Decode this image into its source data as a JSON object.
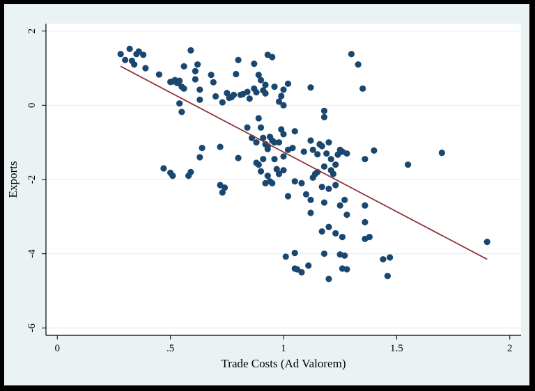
{
  "chart_data": {
    "type": "scatter",
    "title": "",
    "xlabel": "Trade Costs (Ad Valorem)",
    "ylabel": "Exports",
    "xlim": [
      -0.05,
      2.05
    ],
    "ylim": [
      -6.2,
      2.2
    ],
    "xticks": [
      0,
      0.5,
      1,
      1.5,
      2
    ],
    "xtick_labels": [
      "0",
      ".5",
      "1",
      "1.5",
      "2"
    ],
    "yticks": [
      2,
      0,
      -2,
      -4,
      -6
    ],
    "ytick_labels": [
      "2",
      "0",
      "-2",
      "-4",
      "-6"
    ],
    "grid": "horizontal",
    "legend": "none",
    "colors": {
      "marker": "#1a476f",
      "fit_line": "#90353b",
      "plot_background": "#ffffff",
      "outer_background": "#eaf2f3",
      "grid": "#eaf2f3",
      "border": "#000000"
    },
    "series": [
      {
        "marker": "circle",
        "points": [
          [
            0.28,
            1.38
          ],
          [
            0.3,
            1.22
          ],
          [
            0.32,
            1.52
          ],
          [
            0.33,
            1.2
          ],
          [
            0.34,
            1.1
          ],
          [
            0.35,
            1.38
          ],
          [
            0.36,
            1.45
          ],
          [
            0.38,
            1.36
          ],
          [
            0.39,
            1.0
          ],
          [
            0.45,
            0.83
          ],
          [
            0.5,
            0.63
          ],
          [
            0.51,
            0.64
          ],
          [
            0.52,
            0.68
          ],
          [
            0.53,
            0.6
          ],
          [
            0.54,
            0.66
          ],
          [
            0.55,
            0.5
          ],
          [
            0.56,
            0.45
          ],
          [
            0.56,
            1.05
          ],
          [
            0.59,
            1.48
          ],
          [
            0.61,
            0.92
          ],
          [
            0.61,
            0.7
          ],
          [
            0.62,
            1.1
          ],
          [
            0.63,
            0.42
          ],
          [
            0.63,
            0.15
          ],
          [
            0.54,
            0.05
          ],
          [
            0.55,
            -0.18
          ],
          [
            0.68,
            0.82
          ],
          [
            0.69,
            0.62
          ],
          [
            0.7,
            0.24
          ],
          [
            0.73,
            0.08
          ],
          [
            0.75,
            0.33
          ],
          [
            0.76,
            0.2
          ],
          [
            0.77,
            0.22
          ],
          [
            0.78,
            0.28
          ],
          [
            0.79,
            0.84
          ],
          [
            0.8,
            1.22
          ],
          [
            0.81,
            0.28
          ],
          [
            0.82,
            0.3
          ],
          [
            0.84,
            0.36
          ],
          [
            0.85,
            0.18
          ],
          [
            0.87,
            1.12
          ],
          [
            0.87,
            0.45
          ],
          [
            0.88,
            0.35
          ],
          [
            0.89,
            0.82
          ],
          [
            0.9,
            0.68
          ],
          [
            0.91,
            0.4
          ],
          [
            0.92,
            0.55
          ],
          [
            0.92,
            0.32
          ],
          [
            0.93,
            1.36
          ],
          [
            0.95,
            1.3
          ],
          [
            0.96,
            0.5
          ],
          [
            0.98,
            0.1
          ],
          [
            0.99,
            0.25
          ],
          [
            1.0,
            0.42
          ],
          [
            1.0,
            0.0
          ],
          [
            1.02,
            0.58
          ],
          [
            0.84,
            -0.6
          ],
          [
            0.86,
            -0.88
          ],
          [
            0.88,
            -1.0
          ],
          [
            0.89,
            -0.35
          ],
          [
            0.9,
            -0.6
          ],
          [
            0.91,
            -0.88
          ],
          [
            0.92,
            -1.05
          ],
          [
            0.93,
            -1.1
          ],
          [
            0.94,
            -0.85
          ],
          [
            0.95,
            -0.95
          ],
          [
            0.96,
            -1.0
          ],
          [
            0.98,
            -1.0
          ],
          [
            0.99,
            -0.65
          ],
          [
            1.0,
            -0.78
          ],
          [
            1.02,
            -1.2
          ],
          [
            1.04,
            -1.15
          ],
          [
            1.05,
            -0.7
          ],
          [
            1.09,
            -1.25
          ],
          [
            1.12,
            -0.95
          ],
          [
            1.13,
            -1.2
          ],
          [
            1.15,
            -1.32
          ],
          [
            1.16,
            -1.05
          ],
          [
            1.17,
            -1.1
          ],
          [
            1.18,
            -0.15
          ],
          [
            1.18,
            -0.32
          ],
          [
            1.19,
            -1.3
          ],
          [
            1.2,
            -1.0
          ],
          [
            1.21,
            -1.45
          ],
          [
            1.22,
            -1.85
          ],
          [
            1.23,
            -1.6
          ],
          [
            1.24,
            -1.33
          ],
          [
            1.25,
            -1.2
          ],
          [
            1.26,
            -1.25
          ],
          [
            1.28,
            -1.3
          ],
          [
            0.47,
            -1.7
          ],
          [
            0.5,
            -1.82
          ],
          [
            0.51,
            -1.9
          ],
          [
            0.58,
            -1.9
          ],
          [
            0.59,
            -1.8
          ],
          [
            0.63,
            -1.4
          ],
          [
            0.64,
            -1.15
          ],
          [
            0.72,
            -2.15
          ],
          [
            0.73,
            -2.35
          ],
          [
            0.74,
            -2.22
          ],
          [
            0.72,
            -1.12
          ],
          [
            0.8,
            -1.42
          ],
          [
            0.88,
            -1.55
          ],
          [
            0.89,
            -1.6
          ],
          [
            0.9,
            -1.78
          ],
          [
            0.91,
            -1.45
          ],
          [
            0.92,
            -2.1
          ],
          [
            0.93,
            -1.9
          ],
          [
            0.94,
            -2.05
          ],
          [
            0.95,
            -2.1
          ],
          [
            0.96,
            -1.45
          ],
          [
            0.97,
            -1.72
          ],
          [
            0.98,
            -1.85
          ],
          [
            1.0,
            -1.75
          ],
          [
            1.02,
            -2.45
          ],
          [
            1.05,
            -2.05
          ],
          [
            1.08,
            -2.1
          ],
          [
            1.1,
            -2.4
          ],
          [
            1.12,
            -2.55
          ],
          [
            1.13,
            -1.95
          ],
          [
            1.14,
            -1.85
          ],
          [
            1.15,
            -1.8
          ],
          [
            1.17,
            -2.2
          ],
          [
            1.18,
            -1.65
          ],
          [
            1.2,
            -2.25
          ],
          [
            1.21,
            -1.75
          ],
          [
            1.23,
            -2.15
          ],
          [
            1.25,
            -2.7
          ],
          [
            1.27,
            -2.55
          ],
          [
            1.28,
            -2.95
          ],
          [
            1.01,
            -4.08
          ],
          [
            1.05,
            -3.98
          ],
          [
            1.05,
            -4.4
          ],
          [
            1.06,
            -4.42
          ],
          [
            1.08,
            -4.5
          ],
          [
            1.11,
            -4.32
          ],
          [
            1.12,
            -2.9
          ],
          [
            1.17,
            -3.4
          ],
          [
            1.18,
            -4.0
          ],
          [
            1.2,
            -4.68
          ],
          [
            1.2,
            -3.28
          ],
          [
            1.23,
            -3.45
          ],
          [
            1.26,
            -3.55
          ],
          [
            1.27,
            -4.05
          ],
          [
            1.28,
            -4.42
          ],
          [
            1.3,
            1.38
          ],
          [
            1.33,
            1.1
          ],
          [
            1.35,
            0.45
          ],
          [
            1.36,
            -2.7
          ],
          [
            1.36,
            -3.15
          ],
          [
            1.36,
            -3.6
          ],
          [
            1.38,
            -3.55
          ],
          [
            1.4,
            -1.22
          ],
          [
            1.36,
            -1.45
          ],
          [
            1.44,
            -4.15
          ],
          [
            1.46,
            -4.6
          ],
          [
            1.47,
            -4.1
          ],
          [
            1.55,
            -1.6
          ],
          [
            1.7,
            -1.28
          ],
          [
            1.9,
            -3.68
          ],
          [
            1.25,
            -4.02
          ],
          [
            1.26,
            -4.4
          ],
          [
            1.12,
            0.48
          ],
          [
            1.18,
            -2.62
          ],
          [
            0.93,
            -1.18
          ],
          [
            1.0,
            -1.38
          ]
        ]
      }
    ],
    "fit_line": {
      "x": [
        0.28,
        1.9
      ],
      "y": [
        1.05,
        -4.15
      ]
    }
  }
}
